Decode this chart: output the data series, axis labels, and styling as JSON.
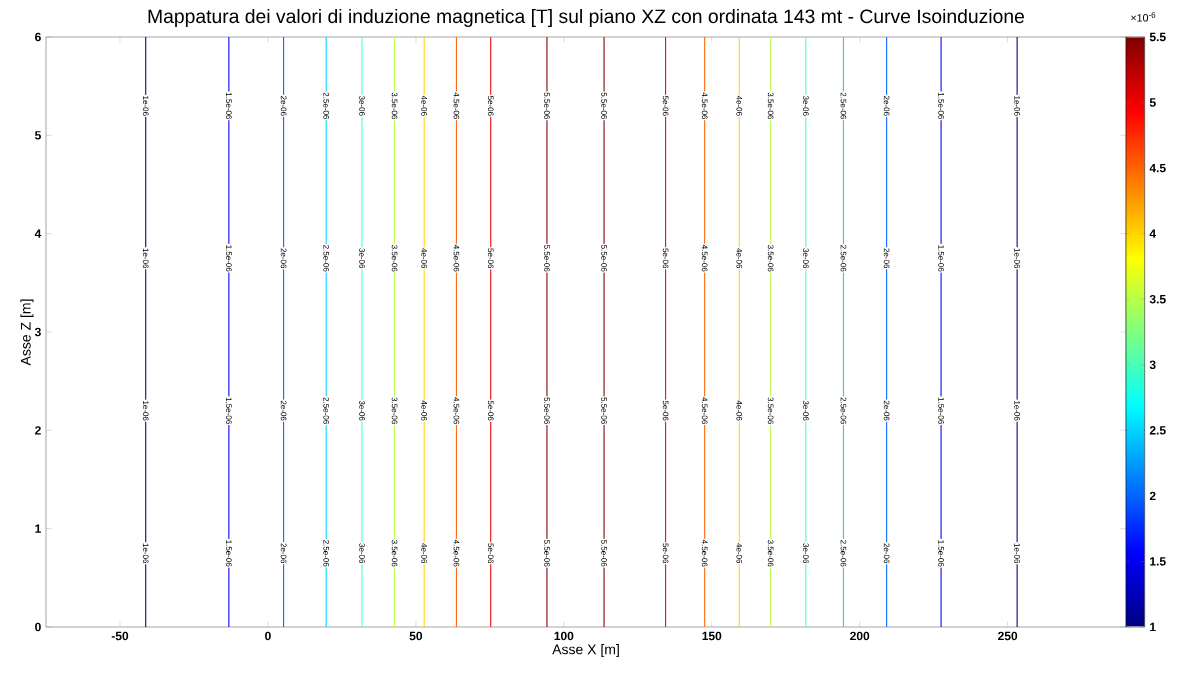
{
  "chart_data": {
    "type": "line",
    "title": "Mappatura dei valori di induzione magnetica [T] sul piano XZ con ordinata 143 mt - Curve Isoinduzione",
    "xlabel": "Asse X [m]",
    "ylabel": "Asse Z [m]",
    "clabel": "×10$^{-6}$",
    "xlim": [
      -75,
      290
    ],
    "ylim": [
      0,
      6
    ],
    "xticks": [
      -50,
      0,
      50,
      100,
      150,
      200,
      250
    ],
    "yticks": [
      0,
      1,
      2,
      3,
      4,
      5,
      6
    ],
    "clim": [
      1,
      5.5
    ],
    "cticks": [
      1,
      1.5,
      2,
      2.5,
      3,
      3.5,
      4,
      4.5,
      5,
      5.5
    ],
    "grid": false,
    "marker": "none",
    "line_style": "solid",
    "series": [
      {
        "name": "1e-06",
        "color": "#000080",
        "x": [
          -41.3,
          -41.3
        ],
        "values": [
          0,
          6
        ]
      },
      {
        "name": "1.5e-06",
        "color": "#0000f1",
        "x": [
          -13.2,
          -13.2
        ],
        "values": [
          0,
          6
        ]
      },
      {
        "name": "2e-06",
        "color": "#0063ff",
        "x": [
          5.3,
          5.3
        ],
        "values": [
          0,
          6
        ]
      },
      {
        "name": "2.5e-06",
        "color": "#00d4ff",
        "x": [
          19.7,
          19.7
        ],
        "values": [
          0,
          6
        ]
      },
      {
        "name": "3e-06",
        "color": "#47ffb8",
        "x": [
          31.8,
          31.8
        ],
        "values": [
          0,
          6
        ]
      },
      {
        "name": "3.5e-06",
        "color": "#b8ff47",
        "x": [
          42.8,
          42.8
        ],
        "values": [
          0,
          6
        ]
      },
      {
        "name": "4e-06",
        "color": "#ffd400",
        "x": [
          52.8,
          52.8
        ],
        "values": [
          0,
          6
        ]
      },
      {
        "name": "4.5e-06",
        "color": "#ff6300",
        "x": [
          63.7,
          63.7
        ],
        "values": [
          0,
          6
        ]
      },
      {
        "name": "5e-06",
        "color": "#f10000",
        "x": [
          75.3,
          75.3
        ],
        "values": [
          0,
          6
        ]
      },
      {
        "name": "5.5e-06",
        "color": "#800000",
        "x": [
          94.3,
          94.3
        ],
        "values": [
          0,
          6
        ]
      },
      {
        "name": "5.5e-06",
        "color": "#800000",
        "x": [
          113.6,
          113.6
        ],
        "values": [
          0,
          6
        ]
      },
      {
        "name": "5e-06",
        "color": "#f10000",
        "x": [
          134.4,
          134.4
        ],
        "values": [
          0,
          6
        ]
      },
      {
        "name": "4.5e-06",
        "color": "#ff6300",
        "x": [
          147.6,
          147.6
        ],
        "values": [
          0,
          6
        ]
      },
      {
        "name": "4e-06",
        "color": "#ffd400",
        "x": [
          159.3,
          159.3
        ],
        "values": [
          0,
          6
        ]
      },
      {
        "name": "3.5e-06",
        "color": "#b8ff47",
        "x": [
          169.9,
          169.9
        ],
        "values": [
          0,
          6
        ]
      },
      {
        "name": "3e-06",
        "color": "#47ffb8",
        "x": [
          181.8,
          181.8
        ],
        "values": [
          0,
          6
        ]
      },
      {
        "name": "2.5e-06",
        "color": "#00d4ff",
        "x": [
          194.5,
          194.5
        ],
        "values": [
          0,
          6
        ]
      },
      {
        "name": "2e-06",
        "color": "#0063ff",
        "x": [
          209.1,
          209.1
        ],
        "values": [
          0,
          6
        ]
      },
      {
        "name": "1.5e-06",
        "color": "#0000f1",
        "x": [
          227.5,
          227.5
        ],
        "values": [
          0,
          6
        ]
      },
      {
        "name": "1e-06",
        "color": "#000080",
        "x": [
          253.2,
          253.2
        ],
        "values": [
          0,
          6
        ]
      }
    ]
  }
}
